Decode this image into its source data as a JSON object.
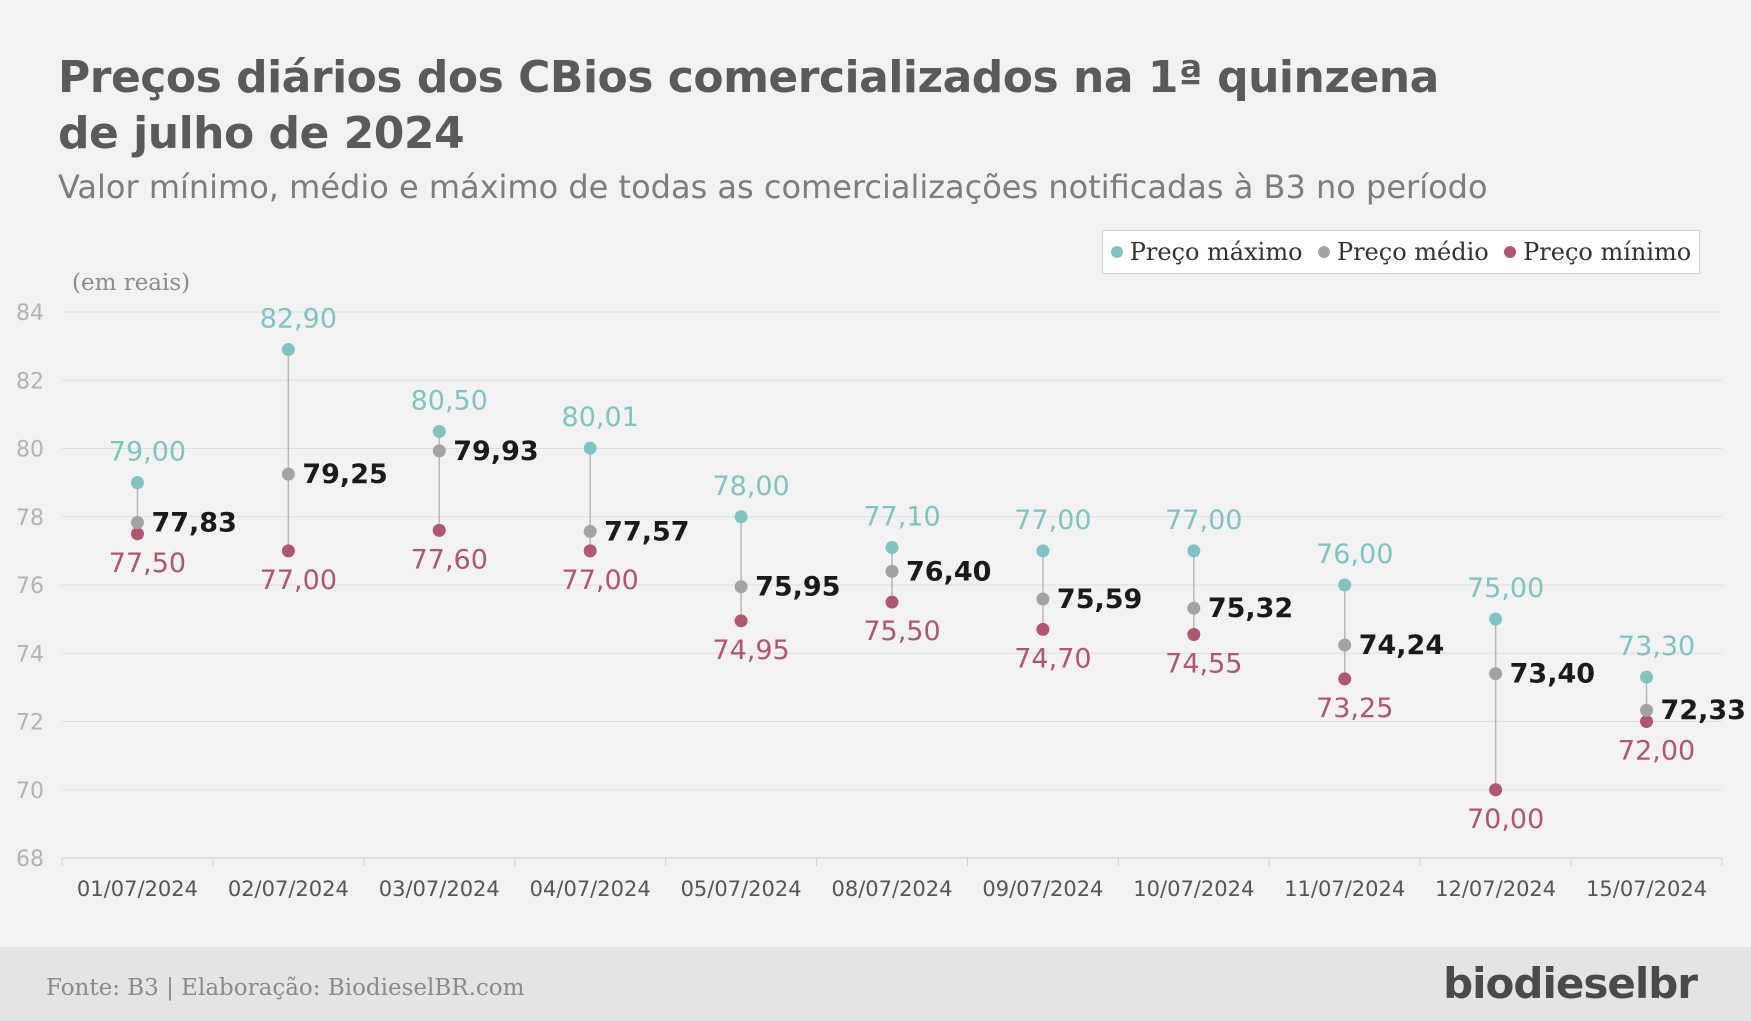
{
  "title_line1": "Preços diários dos CBios comercializados na 1ª quinzena",
  "title_line2": "de julho de 2024",
  "subtitle": "Valor mínimo, médio e máximo de todas as comercializações notificadas à B3 no período",
  "unit_label": "(em reais)",
  "legend": {
    "max": "Preço máximo",
    "avg": "Preço médio",
    "min": "Preço mínimo"
  },
  "colors": {
    "max": "#7fc4c0",
    "avg": "#a3a3a3",
    "min": "#b0566e",
    "avg_label": "#1a1a1a",
    "grid": "#dedede",
    "axis_text": "#b3b3b3",
    "category_text": "#555555"
  },
  "footer": {
    "source": "Fonte: B3 | Elaboração: BiodieselBR.com",
    "brand": "biodieselbr"
  },
  "chart_data": {
    "type": "scatter",
    "title": "Preços diários dos CBios comercializados na 1ª quinzena de julho de 2024",
    "subtitle": "Valor mínimo, médio e máximo de todas as comercializações notificadas à B3 no período",
    "ylabel": "(em reais)",
    "ylim": [
      68,
      84
    ],
    "yticks": [
      68,
      70,
      72,
      74,
      76,
      78,
      80,
      82,
      84
    ],
    "grid": true,
    "legend_position": "top-right",
    "categories": [
      "01/07/2024",
      "02/07/2024",
      "03/07/2024",
      "04/07/2024",
      "05/07/2024",
      "08/07/2024",
      "09/07/2024",
      "10/07/2024",
      "11/07/2024",
      "12/07/2024",
      "15/07/2024"
    ],
    "series": [
      {
        "name": "Preço máximo",
        "values": [
          79.0,
          82.9,
          80.5,
          80.01,
          78.0,
          77.1,
          77.0,
          77.0,
          76.0,
          75.0,
          73.3
        ],
        "labels": [
          "79,00",
          "82,90",
          "80,50",
          "80,01",
          "78,00",
          "77,10",
          "77,00",
          "77,00",
          "76,00",
          "75,00",
          "73,30"
        ]
      },
      {
        "name": "Preço médio",
        "values": [
          77.83,
          79.25,
          79.93,
          77.57,
          75.95,
          76.4,
          75.59,
          75.32,
          74.24,
          73.4,
          72.33
        ],
        "labels": [
          "77,83",
          "79,25",
          "79,93",
          "77,57",
          "75,95",
          "76,40",
          "75,59",
          "75,32",
          "74,24",
          "73,40",
          "72,33"
        ]
      },
      {
        "name": "Preço mínimo",
        "values": [
          77.5,
          77.0,
          77.6,
          77.0,
          74.95,
          75.5,
          74.7,
          74.55,
          73.25,
          70.0,
          72.0
        ],
        "labels": [
          "77,50",
          "77,00",
          "77,60",
          "77,00",
          "74,95",
          "75,50",
          "74,70",
          "74,55",
          "73,25",
          "70,00",
          "72,00"
        ]
      }
    ]
  }
}
